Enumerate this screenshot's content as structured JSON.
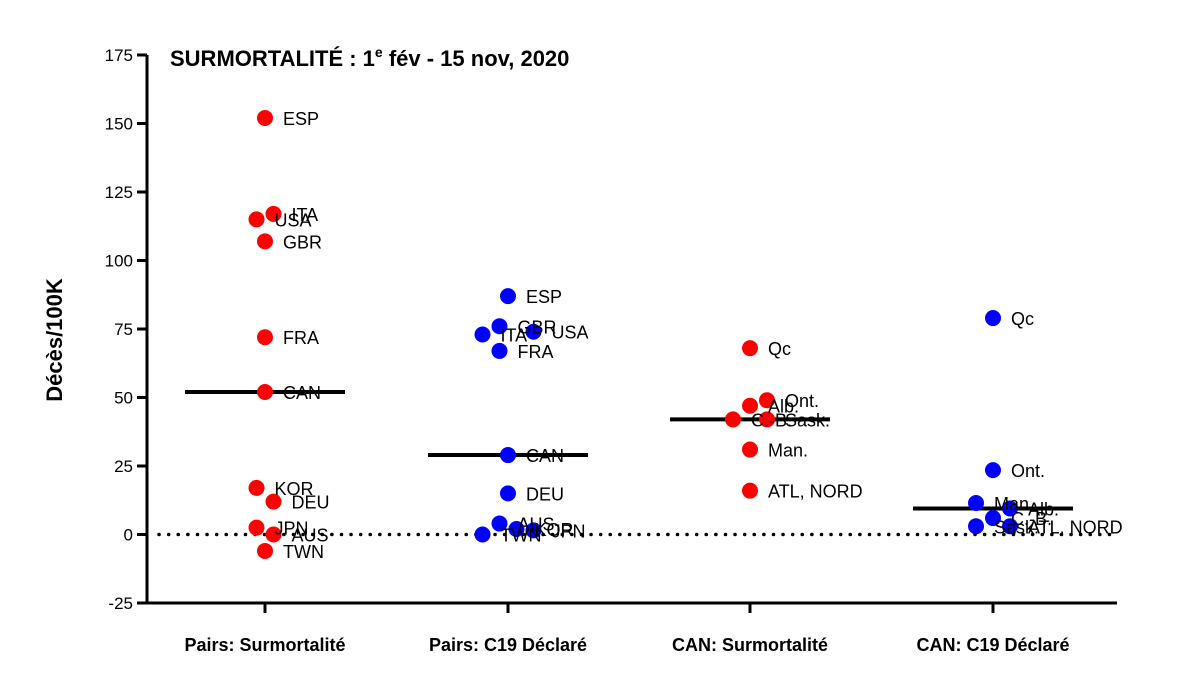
{
  "chart_data": {
    "type": "scatter",
    "title": "SURMORTALITÉ : 1",
    "title_sup": "e",
    "title_rest": " fév - 15 nov, 2020",
    "xlabel": "",
    "ylabel": "Décès/100K",
    "ylim": [
      -25,
      175
    ],
    "yticks": [
      -25,
      0,
      25,
      50,
      75,
      100,
      125,
      150,
      175
    ],
    "grid": false,
    "reference_line": 0,
    "categories": [
      "Pairs: Surmortalité",
      "Pairs: C19 Déclaré",
      "CAN: Surmortalité",
      "CAN: C19 Déclaré"
    ],
    "colors": [
      "#ff0000",
      "#0000ff",
      "#ff0000",
      "#0000ff"
    ],
    "medians": [
      52,
      29,
      42,
      9.5
    ],
    "series": [
      {
        "points": [
          {
            "label": "ESP",
            "value": 152,
            "jitter": 0
          },
          {
            "label": "ITA",
            "value": 117,
            "jitter": 0.5
          },
          {
            "label": "USA",
            "value": 115,
            "jitter": -0.5
          },
          {
            "label": "GBR",
            "value": 107,
            "jitter": 0
          },
          {
            "label": "FRA",
            "value": 72,
            "jitter": 0
          },
          {
            "label": "CAN",
            "value": 52,
            "jitter": 0
          },
          {
            "label": "KOR",
            "value": 17,
            "jitter": -0.5
          },
          {
            "label": "DEU",
            "value": 12,
            "jitter": 0.5
          },
          {
            "label": "JPN",
            "value": 2.5,
            "jitter": -0.5
          },
          {
            "label": "AUS",
            "value": 0,
            "jitter": 0.5
          },
          {
            "label": "TWN",
            "value": -6,
            "jitter": 0
          }
        ]
      },
      {
        "points": [
          {
            "label": "ESP",
            "value": 87,
            "jitter": 0
          },
          {
            "label": "GBR",
            "value": 76,
            "jitter": -0.5
          },
          {
            "label": "USA",
            "value": 74,
            "jitter": 1.5
          },
          {
            "label": "ITA",
            "value": 73,
            "jitter": -1.5
          },
          {
            "label": "FRA",
            "value": 67,
            "jitter": -0.5
          },
          {
            "label": "CAN",
            "value": 29,
            "jitter": 0
          },
          {
            "label": "DEU",
            "value": 15,
            "jitter": 0
          },
          {
            "label": "AUS",
            "value": 4,
            "jitter": -0.5
          },
          {
            "label": "KOR",
            "value": 2,
            "jitter": 0.5
          },
          {
            "label": "JPN",
            "value": 1.5,
            "jitter": 1.5
          },
          {
            "label": "TWN",
            "value": 0,
            "jitter": -1.5
          }
        ]
      },
      {
        "points": [
          {
            "label": "Qc",
            "value": 68,
            "jitter": 0
          },
          {
            "label": "Ont.",
            "value": 49,
            "jitter": 1
          },
          {
            "label": "Alb.",
            "value": 47,
            "jitter": 0
          },
          {
            "label": "C.-B.",
            "value": 42,
            "jitter": -1
          },
          {
            "label": "Sask.",
            "value": 42,
            "jitter": 1
          },
          {
            "label": "Man.",
            "value": 31,
            "jitter": 0
          },
          {
            "label": "ATL, NORD",
            "value": 16,
            "jitter": 0
          }
        ]
      },
      {
        "points": [
          {
            "label": "Qc",
            "value": 79,
            "jitter": 0
          },
          {
            "label": "Ont.",
            "value": 23.5,
            "jitter": 0
          },
          {
            "label": "Man.",
            "value": 11.5,
            "jitter": -1
          },
          {
            "label": "Alb.",
            "value": 9.5,
            "jitter": 1
          },
          {
            "label": "C.-B.",
            "value": 6,
            "jitter": 0
          },
          {
            "label": "Sask.",
            "value": 3,
            "jitter": -1
          },
          {
            "label": "ATL, NORD",
            "value": 3,
            "jitter": 1
          }
        ]
      }
    ]
  }
}
